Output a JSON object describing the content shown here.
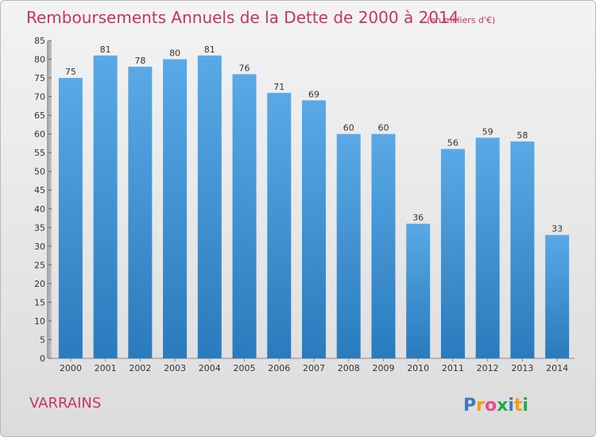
{
  "chart_data": {
    "type": "bar",
    "title": "Remboursements Annuels de la Dette de 2000 à 2014",
    "subtitle": "(en milliers d'€)",
    "categories": [
      "2000",
      "2001",
      "2002",
      "2003",
      "2004",
      "2005",
      "2006",
      "2007",
      "2008",
      "2009",
      "2010",
      "2011",
      "2012",
      "2013",
      "2014"
    ],
    "values": [
      75,
      81,
      78,
      80,
      81,
      76,
      71,
      69,
      60,
      60,
      36,
      56,
      59,
      58,
      33
    ],
    "ylim": [
      0,
      85
    ],
    "ytick_step": 5,
    "xlabel": "",
    "ylabel": "",
    "grid": false,
    "colors": {
      "bar_top": "#5aa9e6",
      "bar_bottom": "#2a7bbd",
      "title": "#c8336a"
    }
  },
  "town": "VARRAINS",
  "logo": {
    "letters": [
      "P",
      "r",
      "o",
      "x",
      "i",
      "t",
      "i"
    ],
    "colors": [
      "#3a7cc0",
      "#f39c12",
      "#e84c8b",
      "#2aa64a",
      "#3a7cc0",
      "#f39c12",
      "#2aa64a"
    ]
  }
}
